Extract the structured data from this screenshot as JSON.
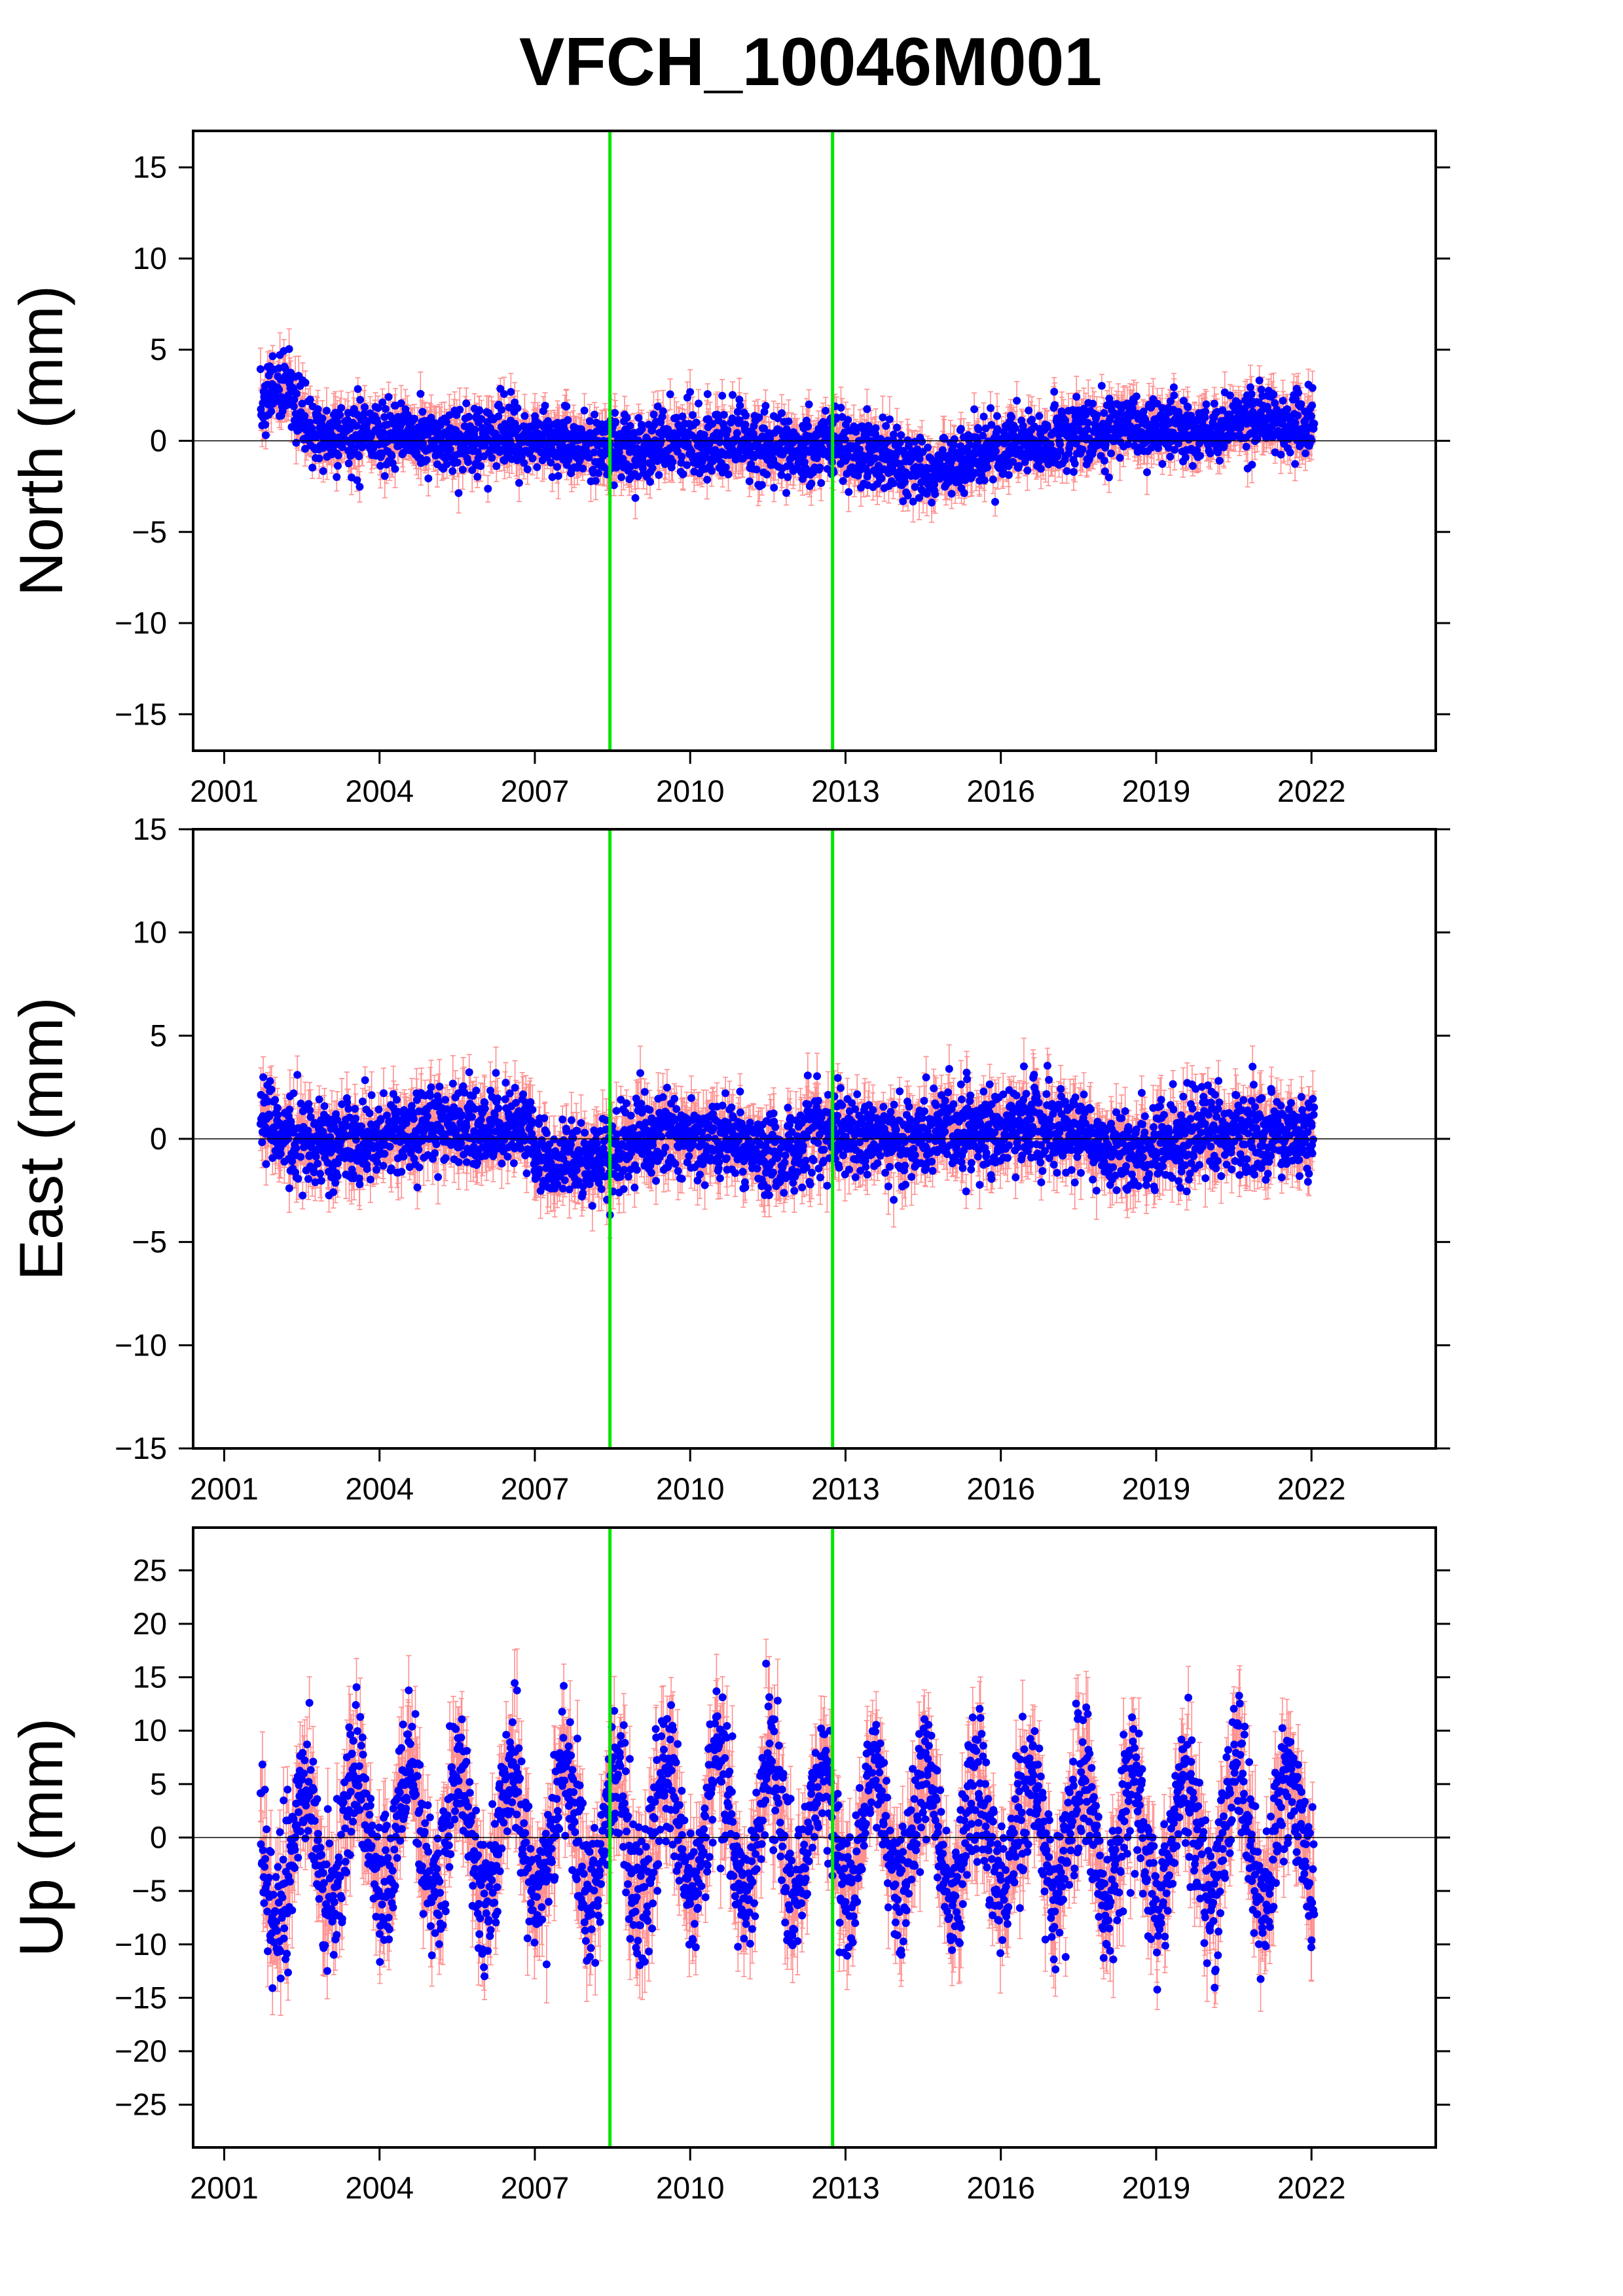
{
  "chart_data": {
    "type": "scatter",
    "title": "VFCH_10046M001",
    "x_tick_labels": [
      "2001",
      "2004",
      "2007",
      "2010",
      "2013",
      "2016",
      "2019",
      "2022"
    ],
    "x_ticks": [
      2001,
      2004,
      2007,
      2010,
      2013,
      2016,
      2019,
      2022
    ],
    "xlim": [
      2000.4,
      2024.4
    ],
    "vertical_lines": {
      "color": "#00e600",
      "x": [
        2008.45,
        2012.75
      ]
    },
    "colors": {
      "points": "#0000ff",
      "error_bars": "#ff6060",
      "zero_line": "#000000"
    },
    "data_range": [
      2001.7,
      2022.05
    ],
    "panels": [
      {
        "name": "north",
        "ylabel": "North (mm)",
        "ylim": [
          -17,
          17
        ],
        "y_ticks": [
          15,
          10,
          5,
          0,
          -5,
          -10,
          -15
        ],
        "y_tick_labels": [
          "15",
          "10",
          "5",
          "0",
          "−5",
          "−10",
          "−15"
        ],
        "noise_mm": 0.9,
        "error_bar_mm": 0.9,
        "series_profile": [
          [
            2001.7,
            2.3
          ],
          [
            2002.2,
            3.2
          ],
          [
            2002.5,
            1.2
          ],
          [
            2003.0,
            0.2
          ],
          [
            2004.0,
            0.2
          ],
          [
            2007.0,
            0.1
          ],
          [
            2008.5,
            -0.3
          ],
          [
            2010.0,
            0.0
          ],
          [
            2011.5,
            -0.3
          ],
          [
            2013.0,
            -0.3
          ],
          [
            2014.0,
            -1.0
          ],
          [
            2014.7,
            -1.8
          ],
          [
            2016.0,
            -0.3
          ],
          [
            2017.0,
            0.1
          ],
          [
            2018.5,
            0.8
          ],
          [
            2020.0,
            0.6
          ],
          [
            2021.0,
            1.4
          ],
          [
            2022.05,
            0.6
          ]
        ]
      },
      {
        "name": "east",
        "ylabel": "East (mm)",
        "ylim": [
          -15,
          15
        ],
        "y_ticks": [
          15,
          10,
          5,
          0,
          -5,
          -10,
          -15
        ],
        "y_tick_labels": [
          "15",
          "10",
          "5",
          "0",
          "−5",
          "−10",
          "−15"
        ],
        "noise_mm": 1.0,
        "error_bar_mm": 1.0,
        "series_profile": [
          [
            2001.7,
            1.0
          ],
          [
            2002.5,
            -0.3
          ],
          [
            2003.5,
            0.0
          ],
          [
            2005.0,
            0.6
          ],
          [
            2006.9,
            0.5
          ],
          [
            2007.1,
            -1.2
          ],
          [
            2008.4,
            -1.0
          ],
          [
            2009.0,
            0.1
          ],
          [
            2010.5,
            0.0
          ],
          [
            2011.5,
            -0.8
          ],
          [
            2012.5,
            0.3
          ],
          [
            2014.0,
            0.0
          ],
          [
            2015.5,
            0.7
          ],
          [
            2017.0,
            0.5
          ],
          [
            2018.5,
            -0.6
          ],
          [
            2020.0,
            0.4
          ],
          [
            2022.05,
            0.2
          ]
        ]
      },
      {
        "name": "up",
        "ylabel": "Up (mm)",
        "ylim": [
          -29,
          29
        ],
        "y_ticks": [
          25,
          20,
          15,
          10,
          5,
          0,
          -5,
          -10,
          -15,
          -20,
          -25
        ],
        "y_tick_labels": [
          "25",
          "20",
          "15",
          "10",
          "5",
          "0",
          "−5",
          "−10",
          "−15",
          "−20",
          "−25"
        ],
        "noise_mm": 3.2,
        "error_bar_mm": 2.8,
        "seasonal_amplitude_mm": 6.0,
        "series_profile": [
          [
            2001.7,
            -3.0
          ],
          [
            2004.0,
            1.0
          ],
          [
            2007.0,
            0.0
          ],
          [
            2010.0,
            0.5
          ],
          [
            2013.0,
            0.5
          ],
          [
            2016.0,
            0.0
          ],
          [
            2019.0,
            -0.5
          ],
          [
            2022.05,
            0.0
          ]
        ]
      }
    ]
  }
}
